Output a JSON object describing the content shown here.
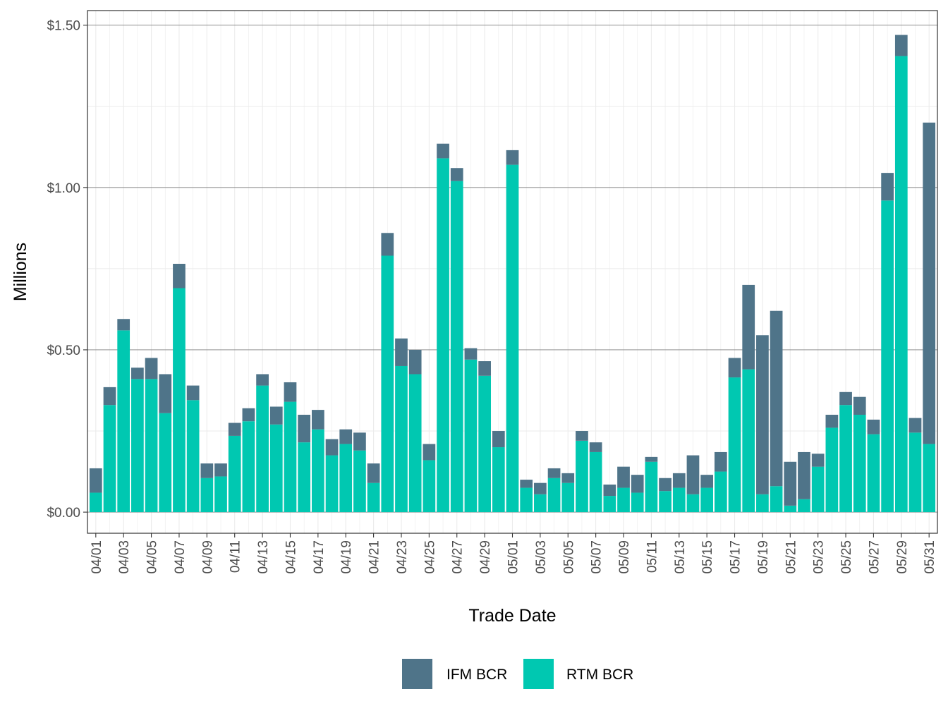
{
  "chart_data": {
    "type": "bar",
    "stacked": true,
    "xlabel": "Trade Date",
    "ylabel": "Millions",
    "ylim": [
      -0.065,
      1.545
    ],
    "y_ticks": [
      0.0,
      0.5,
      1.0,
      1.5
    ],
    "y_tick_labels": [
      "$0.00",
      "$0.50",
      "$1.00",
      "$1.50"
    ],
    "grid": true,
    "legend_position": "bottom",
    "colors": {
      "IFM BCR": "#4F7489",
      "RTM BCR": "#00C8B1"
    },
    "categories": [
      "04/01",
      "04/02",
      "04/03",
      "04/04",
      "04/05",
      "04/06",
      "04/07",
      "04/08",
      "04/09",
      "04/10",
      "04/11",
      "04/12",
      "04/13",
      "04/14",
      "04/15",
      "04/16",
      "04/17",
      "04/18",
      "04/19",
      "04/20",
      "04/21",
      "04/22",
      "04/23",
      "04/24",
      "04/25",
      "04/26",
      "04/27",
      "04/28",
      "04/29",
      "04/30",
      "05/01",
      "05/02",
      "05/03",
      "05/04",
      "05/05",
      "05/06",
      "05/07",
      "05/08",
      "05/09",
      "05/10",
      "05/11",
      "05/12",
      "05/13",
      "05/14",
      "05/15",
      "05/16",
      "05/17",
      "05/18",
      "05/19",
      "05/20",
      "05/21",
      "05/22",
      "05/23",
      "05/24",
      "05/25",
      "05/26",
      "05/27",
      "05/28",
      "05/29",
      "05/30",
      "05/31"
    ],
    "x_tick_labels": [
      "04/01",
      "04/03",
      "04/05",
      "04/07",
      "04/09",
      "04/11",
      "04/13",
      "04/15",
      "04/17",
      "04/19",
      "04/21",
      "04/23",
      "04/25",
      "04/27",
      "04/29",
      "05/01",
      "05/03",
      "05/05",
      "05/07",
      "05/09",
      "05/11",
      "05/13",
      "05/15",
      "05/17",
      "05/19",
      "05/21",
      "05/23",
      "05/25",
      "05/27",
      "05/29",
      "05/31"
    ],
    "series": [
      {
        "name": "RTM BCR",
        "values": [
          0.06,
          0.33,
          0.56,
          0.41,
          0.41,
          0.305,
          0.69,
          0.345,
          0.105,
          0.11,
          0.235,
          0.28,
          0.39,
          0.27,
          0.34,
          0.215,
          0.255,
          0.175,
          0.21,
          0.19,
          0.09,
          0.79,
          0.45,
          0.425,
          0.16,
          1.09,
          1.02,
          0.47,
          0.42,
          0.2,
          1.07,
          0.075,
          0.055,
          0.105,
          0.09,
          0.22,
          0.185,
          0.05,
          0.075,
          0.06,
          0.155,
          0.065,
          0.075,
          0.055,
          0.075,
          0.125,
          0.415,
          0.44,
          0.055,
          0.08,
          0.02,
          0.04,
          0.14,
          0.26,
          0.33,
          0.3,
          0.24,
          0.96,
          1.405,
          0.245,
          0.21
        ]
      },
      {
        "name": "IFM BCR",
        "values": [
          0.075,
          0.055,
          0.035,
          0.035,
          0.065,
          0.12,
          0.075,
          0.045,
          0.045,
          0.04,
          0.04,
          0.04,
          0.035,
          0.055,
          0.06,
          0.085,
          0.06,
          0.05,
          0.045,
          0.055,
          0.06,
          0.07,
          0.085,
          0.075,
          0.05,
          0.045,
          0.04,
          0.035,
          0.045,
          0.05,
          0.045,
          0.025,
          0.035,
          0.03,
          0.03,
          0.03,
          0.03,
          0.035,
          0.065,
          0.055,
          0.015,
          0.04,
          0.045,
          0.12,
          0.04,
          0.06,
          0.06,
          0.26,
          0.49,
          0.54,
          0.135,
          0.145,
          0.04,
          0.04,
          0.04,
          0.055,
          0.045,
          0.085,
          0.065,
          0.045,
          0.99
        ]
      }
    ],
    "legend": [
      "IFM BCR",
      "RTM BCR"
    ]
  }
}
